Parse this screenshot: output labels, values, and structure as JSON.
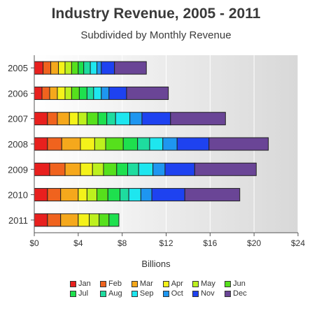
{
  "chart_data": {
    "type": "bar",
    "orientation": "horizontal",
    "stacked": true,
    "title": "Industry Revenue, 2005 - 2011",
    "subtitle": "Subdivided by Monthly Revenue",
    "xlabel": "Billions",
    "ylabel": "",
    "xlim": [
      0,
      24
    ],
    "x_ticks": [
      "$0",
      "$4",
      "$8",
      "$12",
      "$16",
      "$20",
      "$24"
    ],
    "grid": true,
    "legend_position": "bottom",
    "categories": [
      "2005",
      "2006",
      "2007",
      "2008",
      "2009",
      "2010",
      "2011"
    ],
    "series": [
      {
        "name": "Jan",
        "color": "#e8201e",
        "values": [
          0.8,
          0.7,
          1.2,
          1.2,
          1.4,
          1.2,
          1.2
        ]
      },
      {
        "name": "Feb",
        "color": "#f0631e",
        "values": [
          0.7,
          0.7,
          0.9,
          1.3,
          1.4,
          1.2,
          1.2
        ]
      },
      {
        "name": "Mar",
        "color": "#f5a81c",
        "values": [
          0.7,
          0.7,
          1.1,
          1.7,
          1.4,
          1.6,
          1.6
        ]
      },
      {
        "name": "Apr",
        "color": "#f4f21a",
        "values": [
          0.6,
          0.7,
          0.8,
          1.3,
          1.1,
          0.8,
          1.0
        ]
      },
      {
        "name": "May",
        "color": "#bdf01e",
        "values": [
          0.6,
          0.6,
          0.8,
          1.0,
          1.0,
          0.9,
          0.9
        ]
      },
      {
        "name": "Jun",
        "color": "#56e01c",
        "values": [
          0.6,
          0.7,
          1.0,
          1.6,
          1.2,
          1.0,
          0.9
        ]
      },
      {
        "name": "Jul",
        "color": "#1ee04e",
        "values": [
          0.5,
          0.7,
          0.8,
          1.3,
          1.0,
          1.1,
          0.9
        ]
      },
      {
        "name": "Aug",
        "color": "#1edc9f",
        "values": [
          0.6,
          0.6,
          0.8,
          1.1,
          1.0,
          0.8,
          0.0
        ]
      },
      {
        "name": "Sep",
        "color": "#1ee6ef",
        "values": [
          0.6,
          0.7,
          1.3,
          1.2,
          1.3,
          1.1,
          0.0
        ]
      },
      {
        "name": "Oct",
        "color": "#1e96f0",
        "values": [
          0.4,
          0.7,
          1.1,
          1.3,
          1.1,
          1.0,
          0.0
        ]
      },
      {
        "name": "Nov",
        "color": "#1e42f0",
        "values": [
          1.2,
          1.6,
          2.6,
          2.9,
          2.7,
          3.0,
          0.0
        ]
      },
      {
        "name": "Dec",
        "color": "#6a4596",
        "values": [
          2.9,
          3.8,
          5.0,
          5.4,
          5.6,
          5.0,
          0.0
        ]
      }
    ]
  }
}
